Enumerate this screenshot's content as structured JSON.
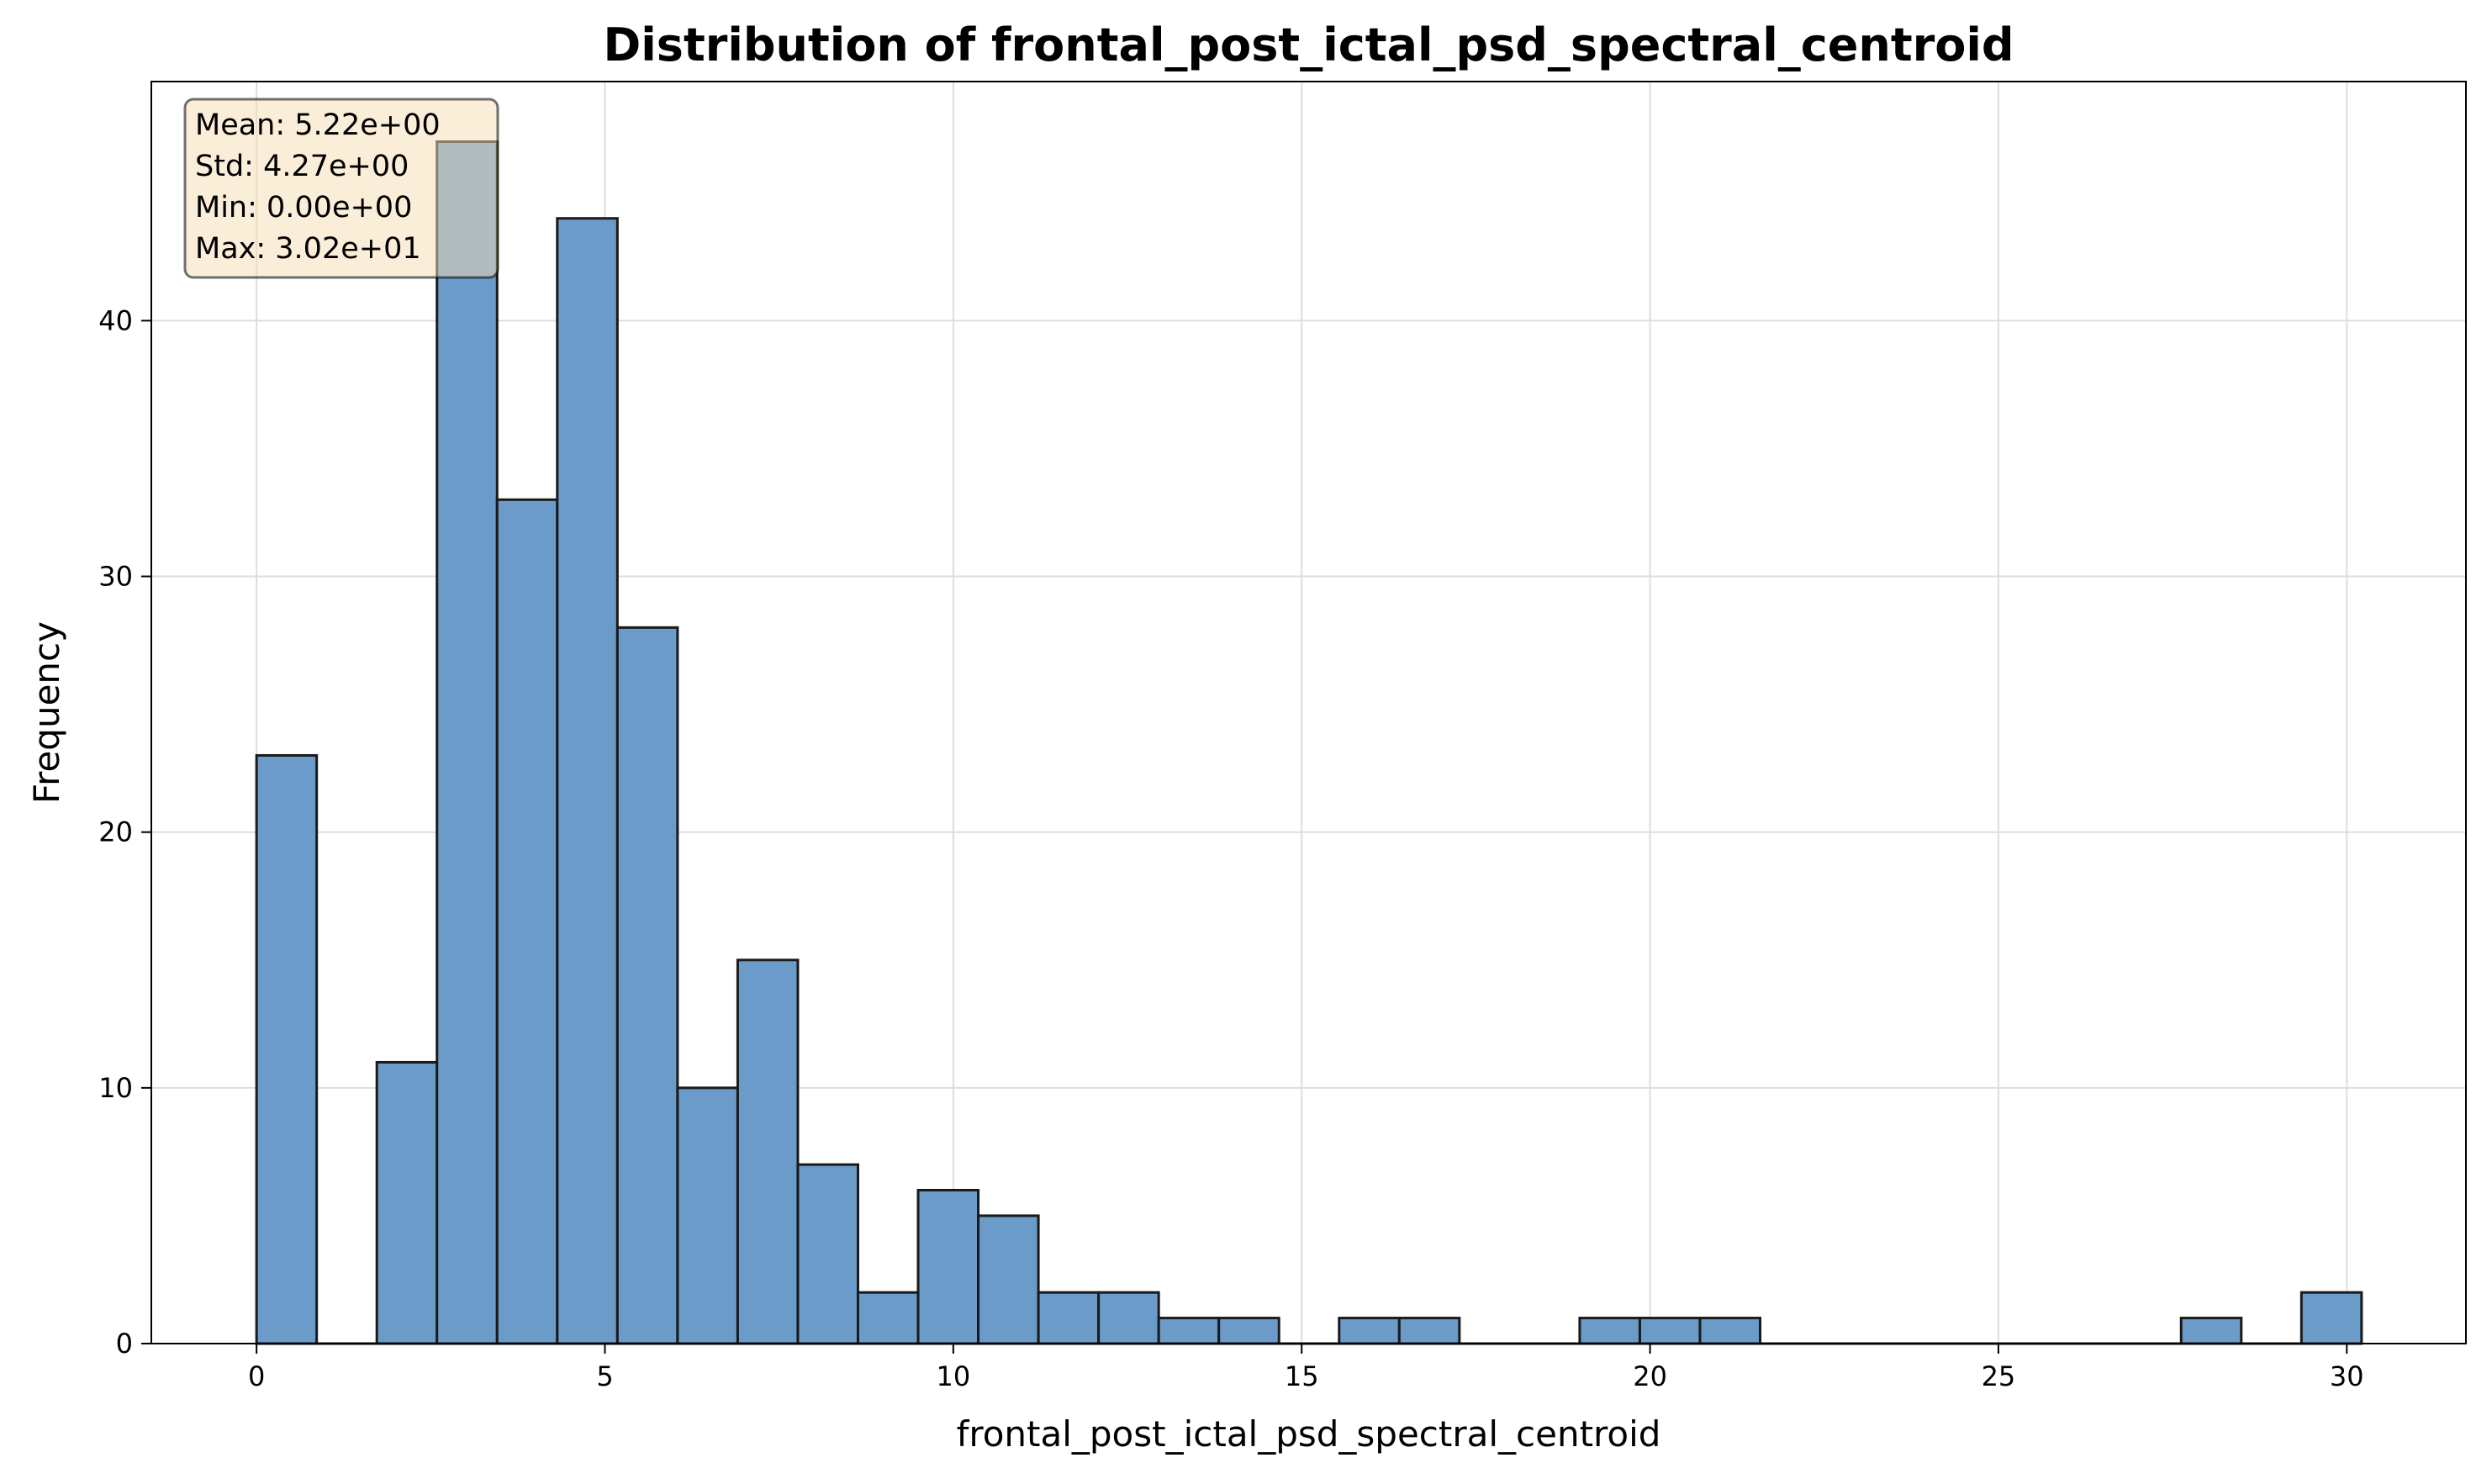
{
  "chart_data": {
    "type": "bar",
    "title": "Distribution of frontal_post_ictal_psd_spectral_centroid",
    "xlabel": "frontal_post_ictal_psd_spectral_centroid",
    "ylabel": "Frequency",
    "xlim": [
      -1.51,
      31.71
    ],
    "ylim": [
      0,
      49.35
    ],
    "xticks": [
      0,
      5,
      10,
      15,
      20,
      25,
      30
    ],
    "yticks": [
      0,
      10,
      20,
      30,
      40
    ],
    "grid": true,
    "bin_start": 0.0,
    "bin_width": 0.8632,
    "counts": [
      23,
      0,
      11,
      47,
      33,
      44,
      28,
      10,
      15,
      7,
      2,
      6,
      5,
      2,
      2,
      1,
      1,
      0,
      1,
      1,
      0,
      0,
      1,
      1,
      1,
      0,
      0,
      0,
      0,
      0,
      0,
      0,
      1,
      0,
      2
    ],
    "bar_color": "#6b9bc8",
    "edge_color": "#1a1a1a",
    "stats_box": {
      "lines": [
        "Mean: 5.22e+00",
        "Std: 4.27e+00",
        "Min: 0.00e+00",
        "Max: 3.02e+01"
      ],
      "placement": "top-left",
      "background": "#f5deb3"
    }
  }
}
